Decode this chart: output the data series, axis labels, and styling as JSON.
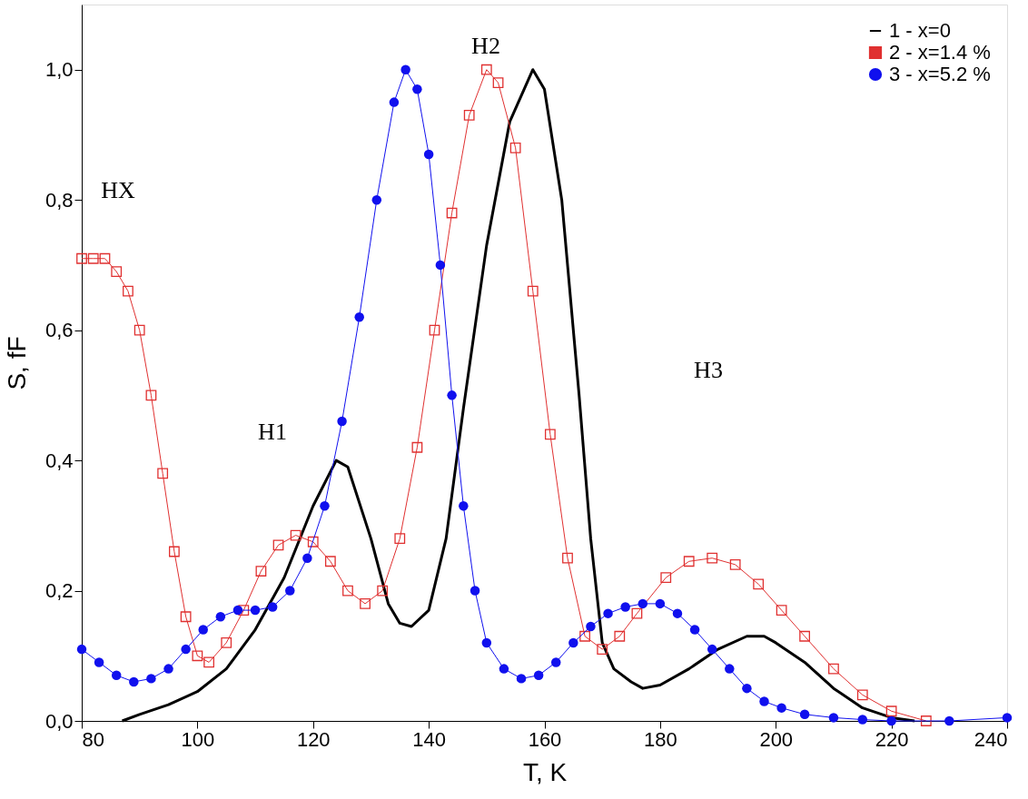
{
  "chart_data": {
    "type": "line",
    "xlabel": "T, K",
    "ylabel": "S, fF",
    "xlim": [
      80,
      240
    ],
    "ylim": [
      0,
      1.1
    ],
    "xticks": [
      80,
      100,
      120,
      140,
      160,
      180,
      200,
      220,
      240
    ],
    "yticks": [
      {
        "value": 0,
        "label": "0,0"
      },
      {
        "value": 0.2,
        "label": "0,2"
      },
      {
        "value": 0.4,
        "label": "0,4"
      },
      {
        "value": 0.6,
        "label": "0,6"
      },
      {
        "value": 0.8,
        "label": "0,8"
      },
      {
        "value": 1.0,
        "label": "1,0"
      }
    ],
    "grid": false,
    "legend": "top right",
    "annotations": [
      "HX",
      "H1",
      "H2",
      "H3"
    ],
    "series": [
      {
        "name": "1 - x=0",
        "color": "#000000",
        "marker": "none",
        "x": [
          87,
          90,
          95,
          100,
          105,
          110,
          115,
          120,
          124,
          126,
          130,
          133,
          135,
          137,
          140,
          143,
          146,
          150,
          154,
          158,
          160,
          163,
          166,
          168,
          170,
          172,
          175,
          177,
          180,
          185,
          190,
          195,
          198,
          200,
          205,
          210,
          215,
          220,
          224
        ],
        "values": [
          0.0,
          0.01,
          0.025,
          0.045,
          0.08,
          0.14,
          0.22,
          0.33,
          0.4,
          0.39,
          0.28,
          0.18,
          0.15,
          0.145,
          0.17,
          0.28,
          0.48,
          0.73,
          0.92,
          1.0,
          0.97,
          0.8,
          0.5,
          0.28,
          0.12,
          0.08,
          0.06,
          0.05,
          0.055,
          0.08,
          0.11,
          0.13,
          0.13,
          0.12,
          0.09,
          0.05,
          0.02,
          0.005,
          0.0
        ]
      },
      {
        "name": "2 - x=1.4 %",
        "color": "#e03030",
        "marker": "square",
        "x": [
          80,
          82,
          84,
          86,
          88,
          90,
          92,
          94,
          96,
          98,
          100,
          102,
          105,
          108,
          111,
          114,
          117,
          120,
          123,
          126,
          129,
          132,
          135,
          138,
          141,
          144,
          147,
          150,
          152,
          155,
          158,
          161,
          164,
          167,
          170,
          173,
          176,
          181,
          185,
          189,
          193,
          197,
          201,
          205,
          210,
          215,
          220,
          226
        ],
        "values": [
          0.71,
          0.71,
          0.71,
          0.69,
          0.66,
          0.6,
          0.5,
          0.38,
          0.26,
          0.16,
          0.1,
          0.09,
          0.12,
          0.17,
          0.23,
          0.27,
          0.285,
          0.275,
          0.245,
          0.2,
          0.18,
          0.2,
          0.28,
          0.42,
          0.6,
          0.78,
          0.93,
          1.0,
          0.98,
          0.88,
          0.66,
          0.44,
          0.25,
          0.13,
          0.11,
          0.13,
          0.165,
          0.22,
          0.245,
          0.25,
          0.24,
          0.21,
          0.17,
          0.13,
          0.08,
          0.04,
          0.015,
          0.0
        ]
      },
      {
        "name": "3 - x=5.2 %",
        "color": "#1010ee",
        "marker": "circle",
        "x": [
          80,
          83,
          86,
          89,
          92,
          95,
          98,
          101,
          104,
          107,
          110,
          113,
          116,
          119,
          122,
          125,
          128,
          131,
          134,
          136,
          138,
          140,
          142,
          144,
          146,
          148,
          150,
          153,
          156,
          159,
          162,
          165,
          168,
          171,
          174,
          177,
          180,
          183,
          186,
          189,
          192,
          195,
          198,
          201,
          205,
          210,
          215,
          220,
          230,
          240
        ],
        "values": [
          0.11,
          0.09,
          0.07,
          0.06,
          0.065,
          0.08,
          0.11,
          0.14,
          0.16,
          0.17,
          0.17,
          0.175,
          0.2,
          0.25,
          0.33,
          0.46,
          0.62,
          0.8,
          0.95,
          1.0,
          0.97,
          0.87,
          0.7,
          0.5,
          0.33,
          0.2,
          0.12,
          0.08,
          0.065,
          0.07,
          0.09,
          0.12,
          0.145,
          0.165,
          0.175,
          0.18,
          0.18,
          0.165,
          0.14,
          0.11,
          0.08,
          0.05,
          0.03,
          0.02,
          0.01,
          0.005,
          0.002,
          0.0,
          0.0,
          0.005
        ]
      }
    ]
  }
}
